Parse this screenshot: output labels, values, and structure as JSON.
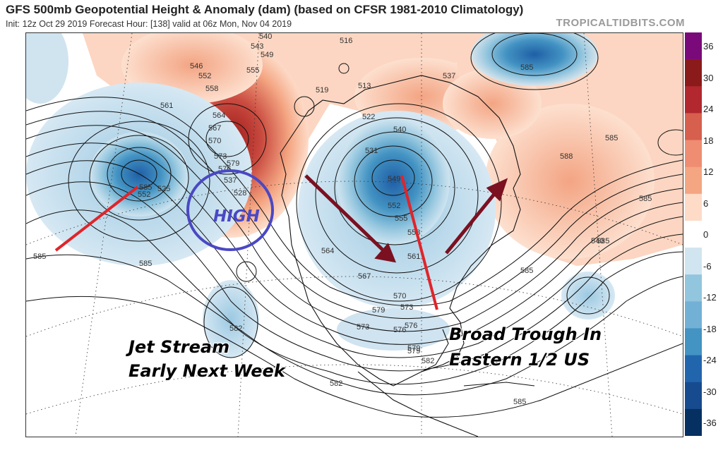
{
  "header": {
    "title": "GFS 500mb Geopotential Height & Anomaly (dam) (based on CFSR 1981-2010 Climatology)",
    "subtitle": "Init: 12z Oct 29 2019   Forecast Hour: [138]   valid at 06z Mon, Nov 04 2019",
    "credit": "TROPICALTIDBITS.COM"
  },
  "colorbar": {
    "labels": [
      "36",
      "30",
      "24",
      "18",
      "12",
      "6",
      "0",
      "-6",
      "-12",
      "-18",
      "-24",
      "-30",
      "-36"
    ],
    "colors": {
      "top": "#7a0a7a",
      "red_dark": "#8b1a1a",
      "red_mid": "#d6604d",
      "red_light": "#f4a582",
      "red_pale": "#fddbc7",
      "blue_pale": "#d1e5f0",
      "blue_light": "#92c5de",
      "blue_mid": "#4393c3",
      "blue_dark": "#2166ac",
      "blue_deep": "#053061"
    }
  },
  "annotations": {
    "jet_line1": "Jet Stream",
    "jet_line2": "Early Next Week",
    "trough_line1": "Broad Trough In",
    "trough_line2": "Eastern 1/2 US",
    "high": "HIGH"
  },
  "contour_labels": [
    "540",
    "543",
    "549",
    "546",
    "552",
    "555",
    "558",
    "561",
    "564",
    "567",
    "570",
    "573",
    "576",
    "579",
    "537",
    "528",
    "525",
    "519",
    "516",
    "513",
    "522",
    "531",
    "540",
    "549",
    "552",
    "555",
    "558",
    "561",
    "564",
    "567",
    "570",
    "573",
    "576",
    "579",
    "582",
    "585",
    "588",
    "585",
    "585",
    "585",
    "585",
    "582",
    "579",
    "573",
    "576",
    "579",
    "582",
    "585",
    "585",
    "585",
    "537",
    "540",
    "585",
    "552",
    "555"
  ]
}
